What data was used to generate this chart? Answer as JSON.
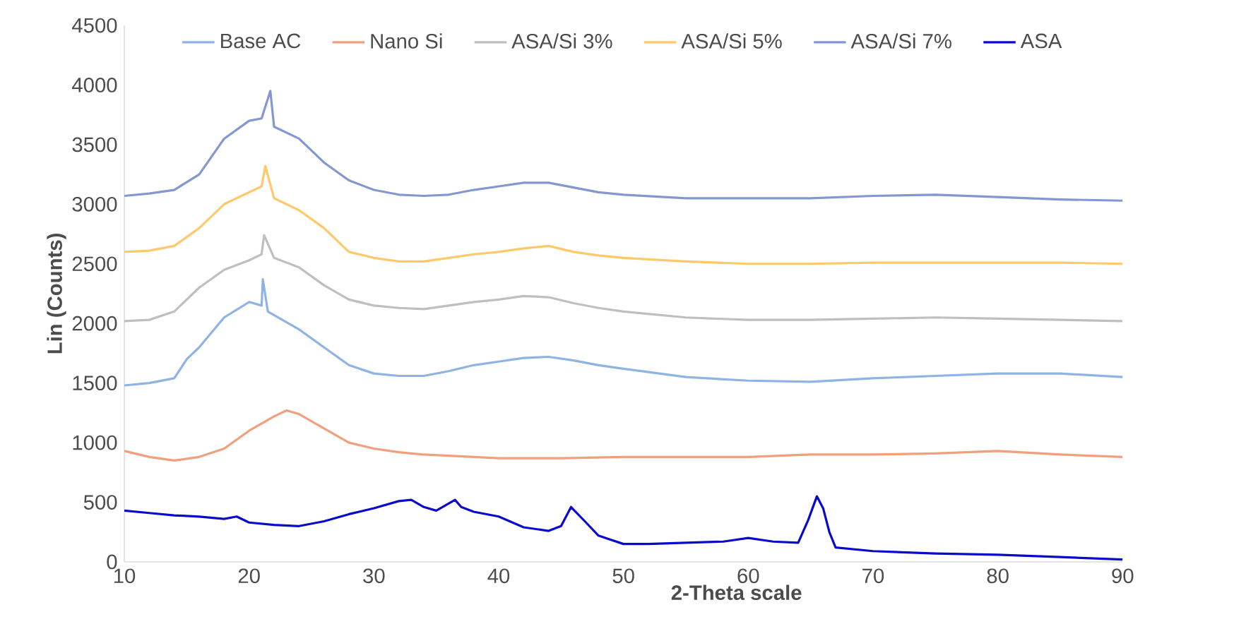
{
  "chart_data": {
    "type": "line",
    "xlabel": "2-Theta scale",
    "ylabel": "Lin (Counts)",
    "xlim": [
      10,
      90
    ],
    "xticks": [
      10,
      20,
      30,
      40,
      50,
      60,
      70,
      80,
      90
    ],
    "ylim": [
      0,
      4500
    ],
    "yticks": [
      0,
      500,
      1000,
      1500,
      2000,
      2500,
      3000,
      3500,
      4000,
      4500
    ],
    "grid": false,
    "legend": "top",
    "marker": "none",
    "line_style": "solid",
    "series": [
      {
        "name": "Base AC",
        "color": "#8eb4e3",
        "x": [
          10,
          12,
          14,
          15,
          16,
          18,
          20,
          21,
          21.1,
          21.5,
          24,
          26,
          28,
          30,
          32,
          34,
          36,
          38,
          40,
          42,
          44,
          46,
          48,
          50,
          55,
          60,
          65,
          70,
          75,
          80,
          85,
          90
        ],
        "values": [
          1480,
          1500,
          1540,
          1700,
          1800,
          2050,
          2180,
          2150,
          2370,
          2100,
          1950,
          1800,
          1650,
          1580,
          1560,
          1560,
          1600,
          1650,
          1680,
          1710,
          1720,
          1690,
          1650,
          1620,
          1550,
          1520,
          1510,
          1540,
          1560,
          1580,
          1580,
          1550
        ]
      },
      {
        "name": "Nano Si",
        "color": "#f0a07c",
        "x": [
          10,
          12,
          14,
          16,
          18,
          20,
          22,
          23,
          24,
          26,
          28,
          30,
          32,
          34,
          36,
          38,
          40,
          45,
          50,
          55,
          60,
          65,
          70,
          75,
          80,
          85,
          90
        ],
        "values": [
          930,
          880,
          850,
          880,
          950,
          1100,
          1220,
          1270,
          1240,
          1120,
          1000,
          950,
          920,
          900,
          890,
          880,
          870,
          870,
          880,
          880,
          880,
          900,
          900,
          910,
          930,
          900,
          880
        ]
      },
      {
        "name": "ASA/Si 3%",
        "color": "#bfbfbf",
        "x": [
          10,
          12,
          14,
          16,
          18,
          20,
          21,
          21.2,
          22,
          24,
          26,
          28,
          30,
          32,
          34,
          36,
          38,
          40,
          42,
          44,
          46,
          48,
          50,
          55,
          60,
          65,
          70,
          75,
          80,
          85,
          90
        ],
        "values": [
          2020,
          2030,
          2100,
          2300,
          2450,
          2530,
          2580,
          2740,
          2550,
          2470,
          2320,
          2200,
          2150,
          2130,
          2120,
          2150,
          2180,
          2200,
          2230,
          2220,
          2170,
          2130,
          2100,
          2050,
          2030,
          2030,
          2040,
          2050,
          2040,
          2030,
          2020
        ]
      },
      {
        "name": "ASA/Si 5%",
        "color": "#ffc96b",
        "x": [
          10,
          12,
          14,
          16,
          18,
          20,
          21,
          21.3,
          22,
          24,
          26,
          28,
          30,
          32,
          34,
          36,
          38,
          40,
          42,
          44,
          46,
          48,
          50,
          55,
          60,
          65,
          70,
          75,
          80,
          85,
          90
        ],
        "values": [
          2600,
          2610,
          2650,
          2800,
          3000,
          3100,
          3150,
          3320,
          3050,
          2950,
          2800,
          2600,
          2550,
          2520,
          2520,
          2550,
          2580,
          2600,
          2630,
          2650,
          2600,
          2570,
          2550,
          2520,
          2500,
          2500,
          2510,
          2510,
          2510,
          2510,
          2500
        ]
      },
      {
        "name": "ASA/Si 7%",
        "color": "#8497d1",
        "x": [
          10,
          12,
          14,
          16,
          18,
          20,
          21,
          21.7,
          22,
          24,
          26,
          28,
          30,
          32,
          34,
          36,
          38,
          40,
          42,
          44,
          46,
          48,
          50,
          55,
          60,
          65,
          70,
          75,
          80,
          85,
          90
        ],
        "values": [
          3070,
          3090,
          3120,
          3250,
          3550,
          3700,
          3720,
          3950,
          3650,
          3550,
          3350,
          3200,
          3120,
          3080,
          3070,
          3080,
          3120,
          3150,
          3180,
          3180,
          3140,
          3100,
          3080,
          3050,
          3050,
          3050,
          3070,
          3080,
          3060,
          3040,
          3030
        ]
      },
      {
        "name": "ASA",
        "color": "#0a0acd",
        "x": [
          10,
          12,
          14,
          16,
          18,
          19,
          20,
          22,
          24,
          26,
          28,
          30,
          32,
          33,
          34,
          35,
          36.5,
          37,
          38,
          40,
          42,
          44,
          45,
          45.8,
          47,
          48,
          50,
          52,
          55,
          58,
          60,
          62,
          64,
          64.8,
          65.5,
          66,
          66.5,
          67,
          70,
          75,
          80,
          85,
          90
        ],
        "values": [
          430,
          410,
          390,
          380,
          360,
          380,
          330,
          310,
          300,
          340,
          400,
          450,
          510,
          520,
          460,
          430,
          520,
          460,
          420,
          380,
          290,
          260,
          300,
          460,
          330,
          220,
          150,
          150,
          160,
          170,
          200,
          170,
          160,
          350,
          550,
          450,
          250,
          120,
          90,
          70,
          60,
          40,
          20
        ]
      }
    ]
  }
}
